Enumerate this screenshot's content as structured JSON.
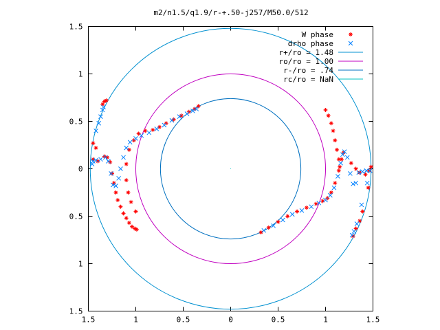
{
  "chart_data": {
    "type": "scatter",
    "title": "m2/n1.5/q1.9/r-+.50-j257/M50.0/512",
    "xlabel": "",
    "ylabel": "",
    "xlim": [
      -1.5,
      1.5
    ],
    "ylim": [
      -1.5,
      1.5
    ],
    "x_tick_values": [
      -1.5,
      -1,
      -0.5,
      0,
      0.5,
      1,
      1.5
    ],
    "x_tick_labels": [
      "1.5",
      "1",
      "0.5",
      "0",
      "0.5",
      "1",
      "1.5"
    ],
    "y_tick_values": [
      1.5,
      1,
      0.5,
      0,
      -0.5,
      -1,
      -1.5
    ],
    "y_tick_labels": [
      "1.5",
      "1",
      "0.5",
      "0",
      "0.5",
      "1",
      "1.5"
    ],
    "grid": false,
    "legend_position": "top-right",
    "colors": {
      "w_phase": "#ff0000",
      "drho_phase": "#0080ff",
      "r_plus": "#0090d0",
      "r_o": "#c000c0",
      "r_minus": "#0070c0",
      "r_c": "#00c0c0"
    },
    "circles": [
      {
        "name": "r+/ro = 1.48",
        "radius": 1.48,
        "color_key": "r_plus"
      },
      {
        "name": "ro/ro = 1.00",
        "radius": 1.0,
        "color_key": "r_o"
      },
      {
        "name": "r-/ro = .74",
        "radius": 0.74,
        "color_key": "r_minus"
      },
      {
        "name": "rc/ro = NaN",
        "radius": null,
        "color_key": "r_c"
      }
    ],
    "series": [
      {
        "name": "W phase",
        "marker": "plus-star",
        "color_key": "w_phase",
        "points": [
          [
            -1.45,
            0.27
          ],
          [
            -1.42,
            0.22
          ],
          [
            -1.35,
            0.68
          ],
          [
            -1.33,
            0.71
          ],
          [
            -1.31,
            0.72
          ],
          [
            -1.45,
            0.1
          ],
          [
            -1.4,
            0.08
          ],
          [
            -1.33,
            0.13
          ],
          [
            -1.3,
            0.12
          ],
          [
            -1.27,
            0.07
          ],
          [
            -1.25,
            -0.05
          ],
          [
            -1.23,
            -0.15
          ],
          [
            -1.21,
            -0.25
          ],
          [
            -1.19,
            -0.33
          ],
          [
            -1.16,
            -0.4
          ],
          [
            -1.13,
            -0.47
          ],
          [
            -1.1,
            -0.52
          ],
          [
            -1.07,
            -0.57
          ],
          [
            -1.04,
            -0.61
          ],
          [
            -1.01,
            -0.63
          ],
          [
            -0.99,
            -0.64
          ],
          [
            -1.0,
            -0.45
          ],
          [
            -1.05,
            -0.35
          ],
          [
            -1.08,
            -0.25
          ],
          [
            -1.1,
            -0.12
          ],
          [
            -1.1,
            0.05
          ],
          [
            -1.07,
            0.2
          ],
          [
            -1.02,
            0.3
          ],
          [
            -0.97,
            0.37
          ],
          [
            -0.9,
            0.4
          ],
          [
            -0.82,
            0.41
          ],
          [
            -0.75,
            0.44
          ],
          [
            -0.68,
            0.48
          ],
          [
            -0.6,
            0.52
          ],
          [
            -0.52,
            0.56
          ],
          [
            -0.44,
            0.6
          ],
          [
            -0.38,
            0.63
          ],
          [
            -0.34,
            0.66
          ],
          [
            1.0,
            0.62
          ],
          [
            1.03,
            0.56
          ],
          [
            1.06,
            0.48
          ],
          [
            1.08,
            0.4
          ],
          [
            1.1,
            0.3
          ],
          [
            1.12,
            0.2
          ],
          [
            1.14,
            0.1
          ],
          [
            1.15,
            0.02
          ],
          [
            1.27,
            0.06
          ],
          [
            1.32,
            0.0
          ],
          [
            1.36,
            -0.04
          ],
          [
            1.42,
            -0.06
          ],
          [
            1.46,
            -0.02
          ],
          [
            1.48,
            0.02
          ],
          [
            1.45,
            -0.2
          ],
          [
            1.39,
            -0.45
          ],
          [
            1.36,
            -0.55
          ],
          [
            1.32,
            -0.63
          ],
          [
            1.29,
            -0.71
          ],
          [
            0.32,
            -0.67
          ],
          [
            0.4,
            -0.62
          ],
          [
            0.5,
            -0.56
          ],
          [
            0.6,
            -0.5
          ],
          [
            0.7,
            -0.45
          ],
          [
            0.8,
            -0.41
          ],
          [
            0.9,
            -0.37
          ],
          [
            0.97,
            -0.34
          ],
          [
            1.02,
            -0.31
          ],
          [
            1.06,
            -0.25
          ],
          [
            1.1,
            -0.15
          ],
          [
            1.14,
            -0.02
          ],
          [
            1.17,
            0.1
          ],
          [
            1.19,
            0.17
          ]
        ]
      },
      {
        "name": "drho phase",
        "marker": "x",
        "color_key": "drho_phase",
        "points": [
          [
            -1.46,
            0.05
          ],
          [
            -1.42,
            0.4
          ],
          [
            -1.39,
            0.48
          ],
          [
            -1.37,
            0.55
          ],
          [
            -1.35,
            0.62
          ],
          [
            -1.34,
            0.65
          ],
          [
            -1.45,
            0.08
          ],
          [
            -1.42,
            0.09
          ],
          [
            -1.37,
            0.1
          ],
          [
            -1.32,
            0.12
          ],
          [
            -1.29,
            0.08
          ],
          [
            -1.26,
            -0.05
          ],
          [
            -1.24,
            -0.17
          ],
          [
            -1.21,
            -0.18
          ],
          [
            -1.18,
            -0.1
          ],
          [
            -1.16,
            0.0
          ],
          [
            -1.13,
            0.12
          ],
          [
            -1.1,
            0.22
          ],
          [
            -1.06,
            0.28
          ],
          [
            -1.0,
            0.32
          ],
          [
            -0.94,
            0.35
          ],
          [
            -0.86,
            0.38
          ],
          [
            -0.78,
            0.42
          ],
          [
            -0.7,
            0.46
          ],
          [
            -0.62,
            0.51
          ],
          [
            -0.54,
            0.55
          ],
          [
            -0.46,
            0.58
          ],
          [
            -0.4,
            0.61
          ],
          [
            -0.36,
            0.63
          ],
          [
            0.35,
            -0.65
          ],
          [
            0.45,
            -0.6
          ],
          [
            0.55,
            -0.54
          ],
          [
            0.65,
            -0.48
          ],
          [
            0.75,
            -0.44
          ],
          [
            0.85,
            -0.4
          ],
          [
            0.93,
            -0.36
          ],
          [
            1.0,
            -0.33
          ],
          [
            1.05,
            -0.28
          ],
          [
            1.09,
            -0.2
          ],
          [
            1.13,
            -0.08
          ],
          [
            1.16,
            0.06
          ],
          [
            1.18,
            0.15
          ],
          [
            1.2,
            0.18
          ],
          [
            1.23,
            0.12
          ],
          [
            1.26,
            -0.05
          ],
          [
            1.29,
            -0.16
          ],
          [
            1.32,
            -0.15
          ],
          [
            1.35,
            -0.04
          ],
          [
            1.39,
            -0.03
          ],
          [
            1.43,
            -0.02
          ],
          [
            1.47,
            -0.02
          ],
          [
            1.44,
            -0.15
          ],
          [
            1.38,
            -0.38
          ],
          [
            1.33,
            -0.58
          ],
          [
            1.3,
            -0.66
          ],
          [
            1.28,
            -0.7
          ]
        ]
      }
    ],
    "legend": [
      {
        "label": "W phase",
        "kind": "marker",
        "marker": "plus-star",
        "color_key": "w_phase"
      },
      {
        "label": "drho phase",
        "kind": "marker",
        "marker": "x",
        "color_key": "drho_phase"
      },
      {
        "label": "r+/ro = 1.48",
        "kind": "line",
        "color_key": "r_plus"
      },
      {
        "label": "ro/ro = 1.00",
        "kind": "line",
        "color_key": "r_o"
      },
      {
        "label": "r-/ro = .74",
        "kind": "line",
        "color_key": "r_minus"
      },
      {
        "label": "rc/ro = NaN",
        "kind": "line",
        "color_key": "r_c"
      }
    ]
  }
}
